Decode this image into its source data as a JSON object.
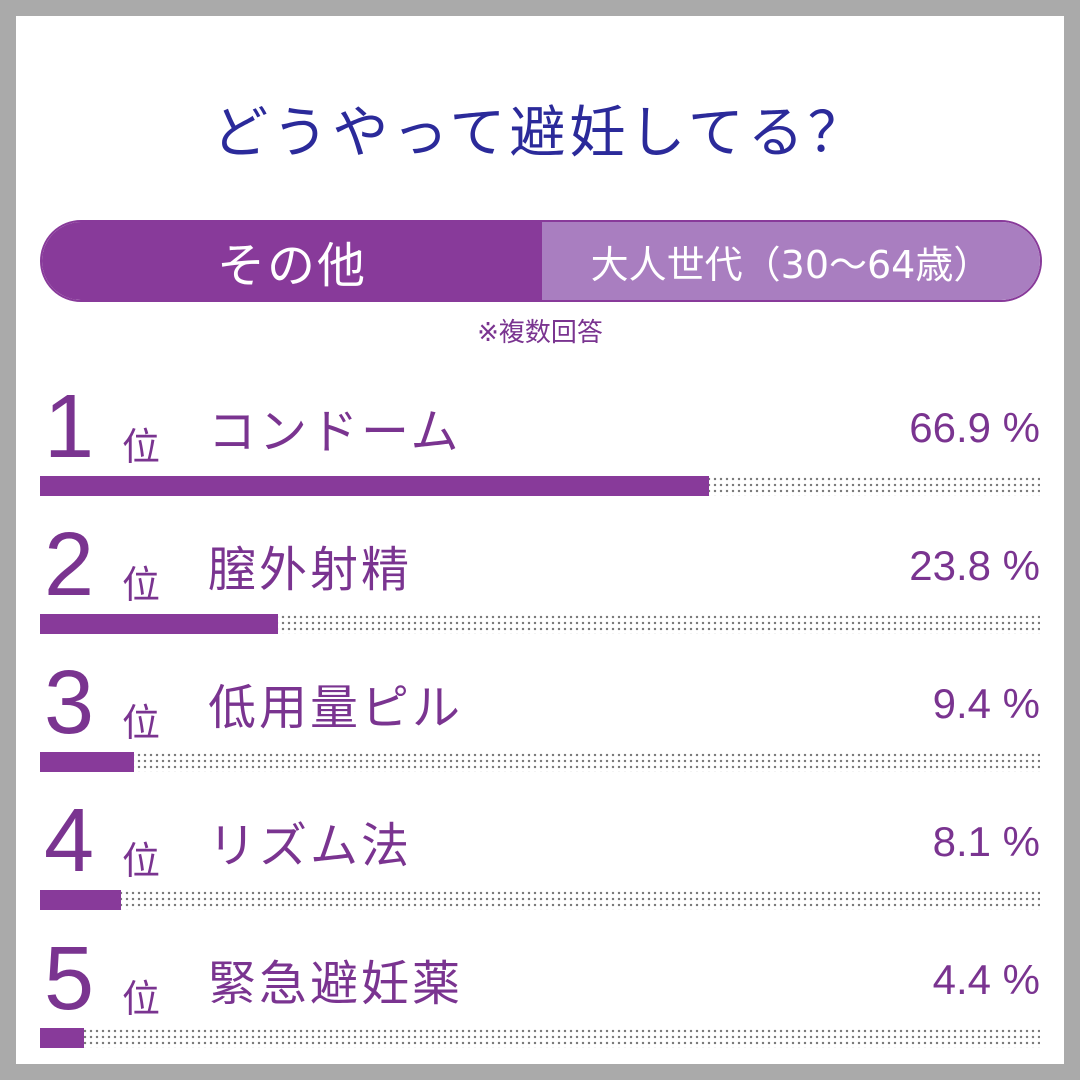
{
  "title": "どうやって避妊してる？",
  "tabs": {
    "active": "その他",
    "inactive": "大人世代（30～64歳）"
  },
  "note": "※複数回答",
  "rank_suffix": "位",
  "colors": {
    "accent": "#883a9a",
    "accent_light": "#a97ec0",
    "title": "#2b2a9a",
    "text": "#7a3490"
  },
  "chart_data": {
    "type": "bar",
    "categories": [
      "コンドーム",
      "膣外射精",
      "低用量ピル",
      "リズム法",
      "緊急避妊薬"
    ],
    "ranks": [
      "1",
      "2",
      "3",
      "4",
      "5"
    ],
    "values": [
      66.9,
      23.8,
      9.4,
      8.1,
      4.4
    ],
    "value_labels": [
      "66.9 %",
      "23.8 %",
      "9.4 %",
      "8.1 %",
      "4.4 %"
    ],
    "unit": "%",
    "xlim": [
      0,
      100
    ]
  }
}
